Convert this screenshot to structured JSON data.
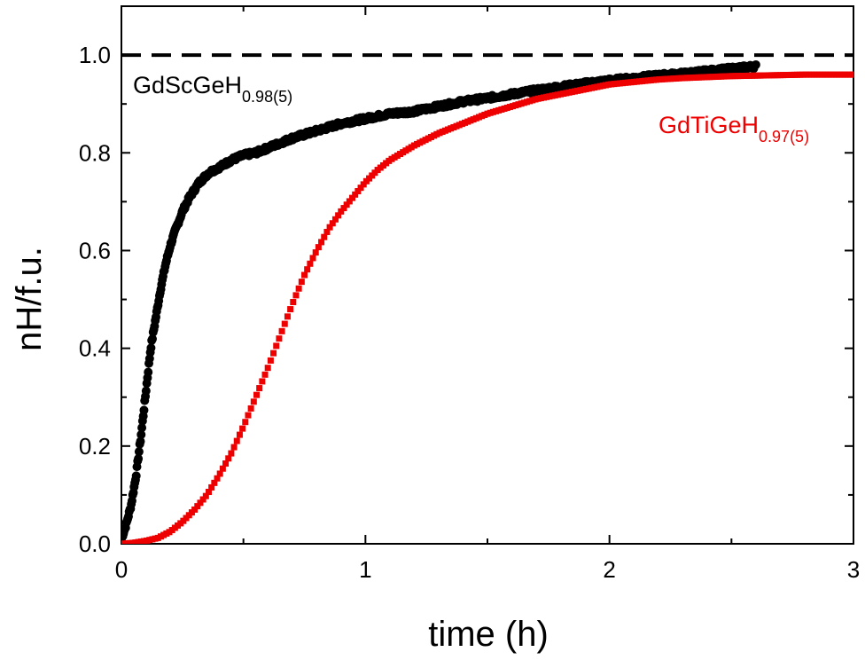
{
  "chart_data": {
    "type": "scatter",
    "title": "",
    "xlabel": "time (h)",
    "ylabel": "nH/f.u.",
    "xlim": [
      0,
      3
    ],
    "ylim": [
      0,
      1.1
    ],
    "x_ticks": [
      0,
      1,
      2,
      3
    ],
    "x_tick_labels": [
      "0",
      "1",
      "2",
      "3"
    ],
    "y_ticks": [
      0.0,
      0.2,
      0.4,
      0.6,
      0.8,
      1.0
    ],
    "y_tick_labels": [
      "0.0",
      "0.2",
      "0.4",
      "0.6",
      "0.8",
      "1.0"
    ],
    "grid": false,
    "reference_line": {
      "y": 1.0,
      "style": "dashed",
      "color": "#000000"
    },
    "series": [
      {
        "label_main": "GdScGeH",
        "label_sub": "0.98(5)",
        "color": "#000000",
        "marker": "circle",
        "x": [
          0.0,
          0.02,
          0.04,
          0.06,
          0.08,
          0.1,
          0.12,
          0.14,
          0.16,
          0.18,
          0.2,
          0.22,
          0.25,
          0.28,
          0.32,
          0.36,
          0.4,
          0.45,
          0.5,
          0.55,
          0.6,
          0.7,
          0.8,
          0.9,
          1.0,
          1.1,
          1.2,
          1.3,
          1.4,
          1.5,
          1.6,
          1.7,
          1.8,
          1.9,
          2.0,
          2.1,
          2.2,
          2.3,
          2.4,
          2.5,
          2.6
        ],
        "y": [
          0.01,
          0.04,
          0.08,
          0.14,
          0.22,
          0.31,
          0.4,
          0.46,
          0.52,
          0.57,
          0.61,
          0.64,
          0.68,
          0.71,
          0.74,
          0.76,
          0.77,
          0.785,
          0.795,
          0.8,
          0.81,
          0.83,
          0.845,
          0.86,
          0.87,
          0.88,
          0.885,
          0.895,
          0.905,
          0.912,
          0.92,
          0.928,
          0.935,
          0.942,
          0.948,
          0.953,
          0.958,
          0.962,
          0.967,
          0.972,
          0.977
        ]
      },
      {
        "label_main": "GdTiGeH",
        "label_sub": "0.97(5)",
        "color": "#ee0000",
        "marker": "square",
        "x": [
          0.0,
          0.05,
          0.1,
          0.15,
          0.2,
          0.25,
          0.3,
          0.35,
          0.4,
          0.45,
          0.5,
          0.55,
          0.6,
          0.65,
          0.7,
          0.75,
          0.8,
          0.85,
          0.9,
          0.95,
          1.0,
          1.05,
          1.1,
          1.15,
          1.2,
          1.3,
          1.4,
          1.5,
          1.6,
          1.7,
          1.8,
          1.9,
          2.0,
          2.1,
          2.2,
          2.3,
          2.4,
          2.5,
          2.6,
          2.7,
          2.8,
          2.9,
          3.0
        ],
        "y": [
          0.0,
          0.002,
          0.006,
          0.012,
          0.025,
          0.045,
          0.07,
          0.1,
          0.14,
          0.185,
          0.24,
          0.3,
          0.36,
          0.425,
          0.49,
          0.55,
          0.6,
          0.645,
          0.68,
          0.71,
          0.74,
          0.765,
          0.785,
          0.8,
          0.815,
          0.84,
          0.86,
          0.88,
          0.895,
          0.91,
          0.92,
          0.93,
          0.94,
          0.945,
          0.95,
          0.953,
          0.955,
          0.957,
          0.958,
          0.959,
          0.96,
          0.96,
          0.96
        ]
      }
    ]
  }
}
